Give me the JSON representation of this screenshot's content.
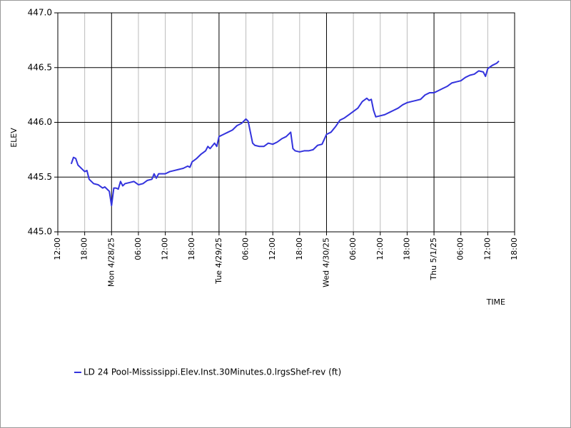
{
  "chart_data": {
    "type": "line",
    "x_label": "TIME",
    "y_label": "ELEV",
    "grid": true,
    "grid_color": "#bbbbbb",
    "major_grid_color": "#000000",
    "legend": "bottom",
    "xlim": [
      "2025-04-27 12:00",
      "2025-05-01 18:00"
    ],
    "xticks": [
      {
        "value": "2025-04-27 12:00",
        "label": "12:00"
      },
      {
        "value": "2025-04-27 18:00",
        "label": "18:00"
      },
      {
        "value": "2025-04-28 00:00",
        "label": "Mon 4/28/25"
      },
      {
        "value": "2025-04-28 06:00",
        "label": "06:00"
      },
      {
        "value": "2025-04-28 12:00",
        "label": "12:00"
      },
      {
        "value": "2025-04-28 18:00",
        "label": "18:00"
      },
      {
        "value": "2025-04-29 00:00",
        "label": "Tue 4/29/25"
      },
      {
        "value": "2025-04-29 06:00",
        "label": "06:00"
      },
      {
        "value": "2025-04-29 12:00",
        "label": "12:00"
      },
      {
        "value": "2025-04-29 18:00",
        "label": "18:00"
      },
      {
        "value": "2025-04-30 00:00",
        "label": "Wed 4/30/25"
      },
      {
        "value": "2025-04-30 06:00",
        "label": "06:00"
      },
      {
        "value": "2025-04-30 12:00",
        "label": "12:00"
      },
      {
        "value": "2025-04-30 18:00",
        "label": "18:00"
      },
      {
        "value": "2025-05-01 00:00",
        "label": "Thu 5/1/25"
      },
      {
        "value": "2025-05-01 06:00",
        "label": "06:00"
      },
      {
        "value": "2025-05-01 12:00",
        "label": "12:00"
      },
      {
        "value": "2025-05-01 18:00",
        "label": "18:00"
      }
    ],
    "ylim": [
      445,
      447
    ],
    "yticks": [
      {
        "value": 445,
        "label": "445.0"
      },
      445.5,
      {
        "value": 446,
        "label": "446.0"
      },
      446.5,
      {
        "value": 447,
        "label": "447.0"
      }
    ],
    "x": [
      "2025-04-27 15:00",
      "2025-04-27 15:30",
      "2025-04-27 16:00",
      "2025-04-27 16:30",
      "2025-04-27 17:00",
      "2025-04-27 18:00",
      "2025-04-27 18:30",
      "2025-04-27 19:00",
      "2025-04-27 20:00",
      "2025-04-27 21:00",
      "2025-04-27 22:00",
      "2025-04-27 22:30",
      "2025-04-27 23:00",
      "2025-04-27 23:30",
      "2025-04-28 00:00",
      "2025-04-28 00:30",
      "2025-04-28 01:00",
      "2025-04-28 01:30",
      "2025-04-28 02:00",
      "2025-04-28 02:30",
      "2025-04-28 03:00",
      "2025-04-28 04:00",
      "2025-04-28 05:00",
      "2025-04-28 06:00",
      "2025-04-28 07:00",
      "2025-04-28 08:00",
      "2025-04-28 09:00",
      "2025-04-28 09:30",
      "2025-04-28 10:00",
      "2025-04-28 10:30",
      "2025-04-28 12:00",
      "2025-04-28 13:00",
      "2025-04-28 14:00",
      "2025-04-28 15:00",
      "2025-04-28 16:00",
      "2025-04-28 17:00",
      "2025-04-28 17:30",
      "2025-04-28 18:00",
      "2025-04-28 19:00",
      "2025-04-28 20:00",
      "2025-04-28 21:00",
      "2025-04-28 21:30",
      "2025-04-28 22:00",
      "2025-04-28 23:00",
      "2025-04-28 23:30",
      "2025-04-29 00:00",
      "2025-04-29 01:00",
      "2025-04-29 02:00",
      "2025-04-29 03:00",
      "2025-04-29 04:00",
      "2025-04-29 05:00",
      "2025-04-29 06:00",
      "2025-04-29 06:30",
      "2025-04-29 07:00",
      "2025-04-29 07:30",
      "2025-04-29 08:00",
      "2025-04-29 09:00",
      "2025-04-29 10:00",
      "2025-04-29 11:00",
      "2025-04-29 12:00",
      "2025-04-29 13:00",
      "2025-04-29 14:00",
      "2025-04-29 15:00",
      "2025-04-29 16:00",
      "2025-04-29 16:30",
      "2025-04-29 17:00",
      "2025-04-29 18:00",
      "2025-04-29 19:00",
      "2025-04-29 20:00",
      "2025-04-29 21:00",
      "2025-04-29 22:00",
      "2025-04-29 23:00",
      "2025-04-30 00:00",
      "2025-04-30 01:00",
      "2025-04-30 02:00",
      "2025-04-30 03:00",
      "2025-04-30 04:00",
      "2025-04-30 05:00",
      "2025-04-30 06:00",
      "2025-04-30 07:00",
      "2025-04-30 08:00",
      "2025-04-30 09:00",
      "2025-04-30 09:30",
      "2025-04-30 10:00",
      "2025-04-30 10:30",
      "2025-04-30 11:00",
      "2025-04-30 12:00",
      "2025-04-30 13:00",
      "2025-04-30 14:00",
      "2025-04-30 15:00",
      "2025-04-30 16:00",
      "2025-04-30 17:00",
      "2025-04-30 18:00",
      "2025-04-30 19:00",
      "2025-04-30 20:00",
      "2025-04-30 21:00",
      "2025-04-30 22:00",
      "2025-04-30 23:00",
      "2025-05-01 00:00",
      "2025-05-01 01:00",
      "2025-05-01 02:00",
      "2025-05-01 03:00",
      "2025-05-01 04:00",
      "2025-05-01 05:00",
      "2025-05-01 06:00",
      "2025-05-01 07:00",
      "2025-05-01 08:00",
      "2025-05-01 09:00",
      "2025-05-01 10:00",
      "2025-05-01 11:00",
      "2025-05-01 11:30",
      "2025-05-01 12:00",
      "2025-05-01 13:00",
      "2025-05-01 14:00",
      "2025-05-01 14:30"
    ],
    "series": [
      {
        "name": "LD 24 Pool-Mississippi.Elev.Inst.30Minutes.0.lrgsShef-rev (ft)",
        "color": "#3333dd",
        "values": [
          445.62,
          445.68,
          445.67,
          445.61,
          445.59,
          445.55,
          445.56,
          445.48,
          445.44,
          445.43,
          445.4,
          445.41,
          445.39,
          445.37,
          445.24,
          445.4,
          445.4,
          445.39,
          445.46,
          445.42,
          445.44,
          445.45,
          445.46,
          445.43,
          445.44,
          445.47,
          445.48,
          445.53,
          445.49,
          445.53,
          445.53,
          445.55,
          445.56,
          445.57,
          445.58,
          445.6,
          445.59,
          445.64,
          445.67,
          445.71,
          445.74,
          445.78,
          445.76,
          445.81,
          445.78,
          445.87,
          445.89,
          445.91,
          445.93,
          445.97,
          445.99,
          446.03,
          446.01,
          445.91,
          445.81,
          445.79,
          445.78,
          445.78,
          445.81,
          445.8,
          445.82,
          445.85,
          445.87,
          445.91,
          445.76,
          445.74,
          445.73,
          445.74,
          445.74,
          445.75,
          445.79,
          445.8,
          445.89,
          445.91,
          445.96,
          446.02,
          446.04,
          446.07,
          446.1,
          446.13,
          446.19,
          446.22,
          446.2,
          446.21,
          446.11,
          446.05,
          446.06,
          446.07,
          446.09,
          446.11,
          446.13,
          446.16,
          446.18,
          446.19,
          446.2,
          446.21,
          446.25,
          446.27,
          446.27,
          446.29,
          446.31,
          446.33,
          446.36,
          446.37,
          446.38,
          446.41,
          446.43,
          446.44,
          446.47,
          446.46,
          446.42,
          446.49,
          446.52,
          446.54,
          446.56
        ]
      }
    ]
  }
}
